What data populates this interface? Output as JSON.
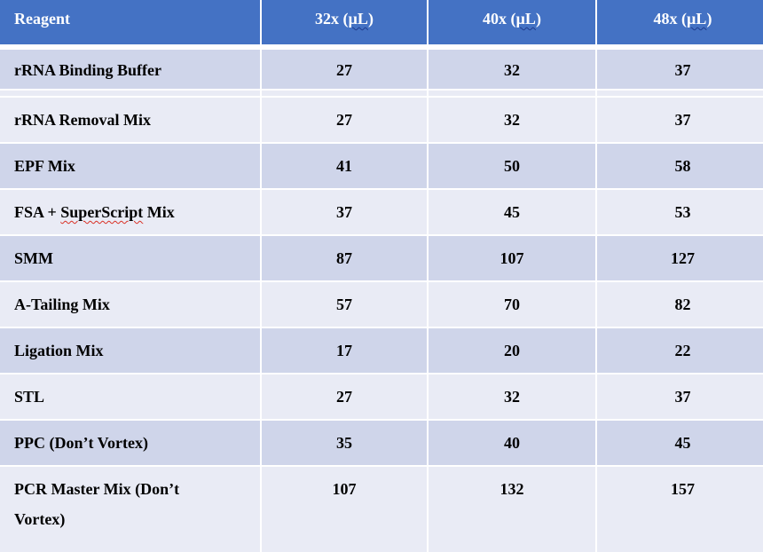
{
  "table": {
    "headers": [
      "Reagent",
      "32x (",
      "40x (",
      "48x ("
    ],
    "header_unit": "µL",
    "header_close": ")",
    "rows": [
      {
        "reagent": "rRNA Binding Buffer",
        "v32": "27",
        "v40": "32",
        "v48": "37"
      },
      {
        "reagent": "rRNA Removal Mix",
        "v32": "27",
        "v40": "32",
        "v48": "37"
      },
      {
        "reagent": "EPF Mix",
        "v32": "41",
        "v40": "50",
        "v48": "58"
      },
      {
        "reagent_prefix": "FSA + ",
        "reagent_flagged": "SuperScript",
        "reagent_suffix": " Mix",
        "v32": "37",
        "v40": "45",
        "v48": "53"
      },
      {
        "reagent": "SMM",
        "v32": "87",
        "v40": "107",
        "v48": "127"
      },
      {
        "reagent": "A-Tailing Mix",
        "v32": "57",
        "v40": "70",
        "v48": "82"
      },
      {
        "reagent": "Ligation Mix",
        "v32": "17",
        "v40": "20",
        "v48": "22"
      },
      {
        "reagent": "STL",
        "v32": "27",
        "v40": "32",
        "v48": "37"
      },
      {
        "reagent": "PPC (Don’t Vortex)",
        "v32": "35",
        "v40": "40",
        "v48": "45"
      },
      {
        "reagent_line1": "PCR Master Mix (Don’t",
        "reagent_line2": "Vortex)",
        "v32": "107",
        "v40": "132",
        "v48": "157"
      }
    ]
  },
  "colors": {
    "header": "#4472c4",
    "row_dark": "#cfd5ea",
    "row_light": "#e9ebf5"
  }
}
